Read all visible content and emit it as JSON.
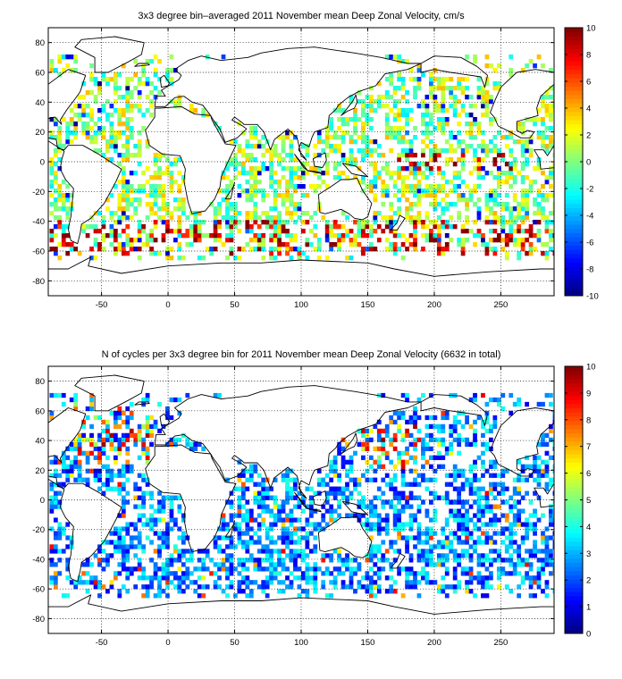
{
  "chart_data": [
    {
      "type": "heatmap",
      "title": "3x3 degree bin–averaged 2011 November mean Deep Zonal Velocity, cm/s",
      "x_ticks": [
        -50,
        0,
        50,
        100,
        150,
        200,
        250
      ],
      "y_ticks": [
        80,
        60,
        40,
        20,
        0,
        -20,
        -40,
        -60,
        -80
      ],
      "xlim": [
        -90,
        290
      ],
      "ylim": [
        -90,
        90
      ],
      "bin_size_deg": 3,
      "grid": true,
      "colorbar": {
        "min": -10,
        "max": 10,
        "colormap": "jet",
        "placement": "right",
        "ticks": [
          10,
          8,
          6,
          4,
          2,
          0,
          -2,
          -4,
          -6,
          -8,
          -10
        ]
      },
      "value_pattern": "zonal velocity mostly between -2 and 4 cm/s; strong eastward (8-10) bands near 40-60S and along the equator 180-260E"
    },
    {
      "type": "heatmap",
      "title": "N of cycles per 3x3 degree bin for 2011 November mean Deep Zonal Velocity (6632 in total)",
      "x_ticks": [
        -50,
        0,
        50,
        100,
        150,
        200,
        250
      ],
      "y_ticks": [
        80,
        60,
        40,
        20,
        0,
        -20,
        -40,
        -60,
        -80
      ],
      "xlim": [
        -90,
        290
      ],
      "ylim": [
        -90,
        90
      ],
      "bin_size_deg": 3,
      "grid": true,
      "total_cycles": 6632,
      "colorbar": {
        "min": 0,
        "max": 10,
        "colormap": "jet",
        "placement": "right",
        "ticks": [
          10,
          9,
          8,
          7,
          6,
          5,
          4,
          3,
          2,
          1,
          0
        ]
      },
      "value_pattern": "mostly 1-4 cycles per bin; higher counts (6-10) in the North Atlantic and Northwest Pacific"
    }
  ]
}
